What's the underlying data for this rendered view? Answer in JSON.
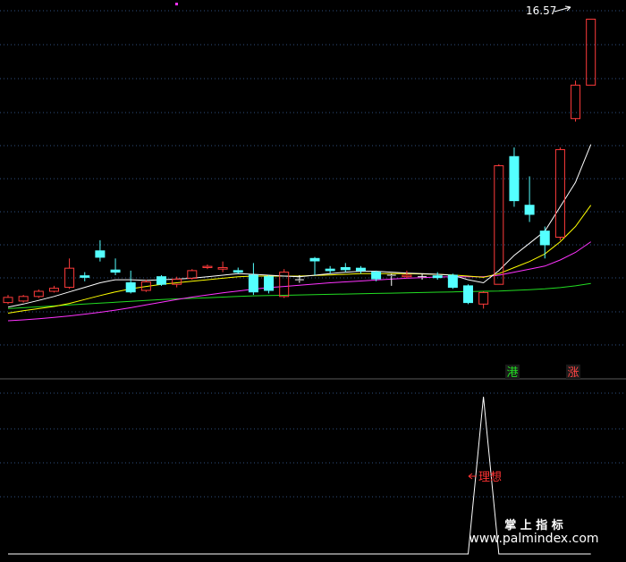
{
  "colors": {
    "background": "#000000",
    "up": "#ff3b3b",
    "down": "#54ffff",
    "doji": "#ffffff",
    "ma5": "#ffffff",
    "ma10": "#ffff00",
    "ma20": "#ff33ff",
    "ma60": "#22dd22",
    "grid": "#2f4f7f",
    "divider": "#5a5a5a",
    "indicator": "#ffffff",
    "annotation": "#ff3333",
    "marker_hk": "#22dd22",
    "marker_zhang": "#ff4444",
    "marker_bg": "#1a1a1a",
    "watermark": "#ffffff"
  },
  "labels": {
    "max_price": "16.57",
    "marker_hk": "港",
    "marker_zhang": "涨",
    "annotation": "理想",
    "watermark_line1": "掌 上 指 标",
    "watermark_line2": "www.palmindex.com"
  },
  "chart_data": [
    {
      "type": "candlestick",
      "max_price": 16.57,
      "ylim": [
        4.8,
        17.2
      ],
      "grid": true,
      "candles": [
        {
          "o": 7.25,
          "c": 7.42,
          "h": 7.5,
          "l": 7.2
        },
        {
          "o": 7.3,
          "c": 7.45,
          "h": 7.5,
          "l": 7.25
        },
        {
          "o": 7.45,
          "c": 7.62,
          "h": 7.68,
          "l": 7.4
        },
        {
          "o": 7.62,
          "c": 7.72,
          "h": 7.8,
          "l": 7.58
        },
        {
          "o": 7.75,
          "c": 8.38,
          "h": 8.7,
          "l": 7.7
        },
        {
          "o": 8.13,
          "c": 8.08,
          "h": 8.25,
          "l": 7.95
        },
        {
          "o": 8.95,
          "c": 8.74,
          "h": 9.3,
          "l": 8.6
        },
        {
          "o": 8.32,
          "c": 8.25,
          "h": 8.7,
          "l": 8.15
        },
        {
          "o": 7.9,
          "c": 7.6,
          "h": 8.3,
          "l": 7.55
        },
        {
          "o": 7.65,
          "c": 7.93,
          "h": 8.0,
          "l": 7.6
        },
        {
          "o": 8.1,
          "c": 7.85,
          "h": 8.15,
          "l": 7.8
        },
        {
          "o": 7.85,
          "c": 8.02,
          "h": 8.1,
          "l": 7.75
        },
        {
          "o": 8.05,
          "c": 8.3,
          "h": 8.35,
          "l": 8.0
        },
        {
          "o": 8.4,
          "c": 8.44,
          "h": 8.5,
          "l": 8.35
        },
        {
          "o": 8.35,
          "c": 8.4,
          "h": 8.6,
          "l": 8.25
        },
        {
          "o": 8.3,
          "c": 8.25,
          "h": 8.4,
          "l": 8.2
        },
        {
          "o": 8.15,
          "c": 7.6,
          "h": 8.55,
          "l": 7.5
        },
        {
          "o": 8.1,
          "c": 7.65,
          "h": 8.15,
          "l": 7.55
        },
        {
          "o": 7.45,
          "c": 8.25,
          "h": 8.35,
          "l": 7.4
        },
        {
          "o": 8.0,
          "c": 8.0,
          "h": 8.15,
          "l": 7.9
        },
        {
          "o": 8.7,
          "c": 8.62,
          "h": 8.75,
          "l": 8.15
        },
        {
          "o": 8.35,
          "c": 8.3,
          "h": 8.45,
          "l": 8.2
        },
        {
          "o": 8.4,
          "c": 8.33,
          "h": 8.55,
          "l": 8.25
        },
        {
          "o": 8.38,
          "c": 8.3,
          "h": 8.45,
          "l": 8.2
        },
        {
          "o": 8.25,
          "c": 8.03,
          "h": 8.3,
          "l": 7.95
        },
        {
          "o": 8.15,
          "c": 8.15,
          "h": 8.2,
          "l": 7.8
        },
        {
          "o": 8.1,
          "c": 8.15,
          "h": 8.3,
          "l": 8.05
        },
        {
          "o": 8.1,
          "c": 8.1,
          "h": 8.2,
          "l": 8.0
        },
        {
          "o": 8.13,
          "c": 8.07,
          "h": 8.25,
          "l": 8.0
        },
        {
          "o": 8.15,
          "c": 7.75,
          "h": 8.2,
          "l": 7.7
        },
        {
          "o": 7.8,
          "c": 7.25,
          "h": 7.85,
          "l": 7.2
        },
        {
          "o": 7.2,
          "c": 7.58,
          "h": 7.62,
          "l": 7.05
        },
        {
          "o": 7.85,
          "c": 11.75,
          "h": 11.8,
          "l": 7.85
        },
        {
          "o": 12.05,
          "c": 10.6,
          "h": 12.35,
          "l": 10.4
        },
        {
          "o": 10.45,
          "c": 10.15,
          "h": 11.4,
          "l": 9.9
        },
        {
          "o": 9.6,
          "c": 9.15,
          "h": 9.75,
          "l": 8.7
        },
        {
          "o": 9.4,
          "c": 12.28,
          "h": 12.35,
          "l": 9.3
        },
        {
          "o": 13.3,
          "c": 14.4,
          "h": 14.55,
          "l": 13.2
        },
        {
          "o": 14.4,
          "c": 16.57,
          "h": 16.57,
          "l": 14.4
        }
      ],
      "ma5": [
        7.1,
        7.2,
        7.32,
        7.45,
        7.6,
        7.75,
        7.9,
        8.0,
        8.0,
        7.98,
        8.0,
        8.02,
        8.05,
        8.1,
        8.15,
        8.2,
        8.18,
        8.15,
        8.12,
        8.1,
        8.15,
        8.2,
        8.25,
        8.28,
        8.28,
        8.25,
        8.22,
        8.2,
        8.18,
        8.15,
        8.0,
        7.9,
        8.3,
        8.8,
        9.2,
        9.6,
        10.4,
        11.2,
        12.45
      ],
      "ma10": [
        6.9,
        6.98,
        7.05,
        7.12,
        7.22,
        7.35,
        7.48,
        7.6,
        7.7,
        7.78,
        7.85,
        7.9,
        7.95,
        8.0,
        8.05,
        8.1,
        8.12,
        8.12,
        8.12,
        8.12,
        8.14,
        8.16,
        8.18,
        8.2,
        8.2,
        8.2,
        8.2,
        8.19,
        8.18,
        8.16,
        8.12,
        8.08,
        8.2,
        8.4,
        8.6,
        8.85,
        9.25,
        9.75,
        10.45
      ],
      "ma20": [
        6.65,
        6.68,
        6.72,
        6.76,
        6.81,
        6.87,
        6.93,
        7.0,
        7.08,
        7.17,
        7.26,
        7.35,
        7.43,
        7.5,
        7.57,
        7.63,
        7.69,
        7.74,
        7.78,
        7.82,
        7.86,
        7.9,
        7.93,
        7.96,
        7.99,
        8.02,
        8.05,
        8.07,
        8.09,
        8.1,
        8.1,
        8.1,
        8.15,
        8.25,
        8.35,
        8.45,
        8.65,
        8.9,
        9.25
      ],
      "ma60": [
        7.05,
        7.08,
        7.11,
        7.14,
        7.17,
        7.2,
        7.23,
        7.26,
        7.29,
        7.32,
        7.35,
        7.37,
        7.39,
        7.41,
        7.43,
        7.45,
        7.47,
        7.48,
        7.49,
        7.5,
        7.51,
        7.52,
        7.53,
        7.54,
        7.55,
        7.56,
        7.57,
        7.58,
        7.59,
        7.6,
        7.61,
        7.62,
        7.63,
        7.65,
        7.67,
        7.7,
        7.74,
        7.8,
        7.88
      ]
    },
    {
      "type": "line",
      "ylim": [
        0,
        10
      ],
      "values": [
        0,
        0,
        0,
        0,
        0,
        0,
        0,
        0,
        0,
        0,
        0,
        0,
        0,
        0,
        0,
        0,
        0,
        0,
        0,
        0,
        0,
        0,
        0,
        0,
        0,
        0,
        0,
        0,
        0,
        0,
        0,
        10,
        0,
        0,
        0,
        0,
        0,
        0,
        0
      ]
    }
  ]
}
